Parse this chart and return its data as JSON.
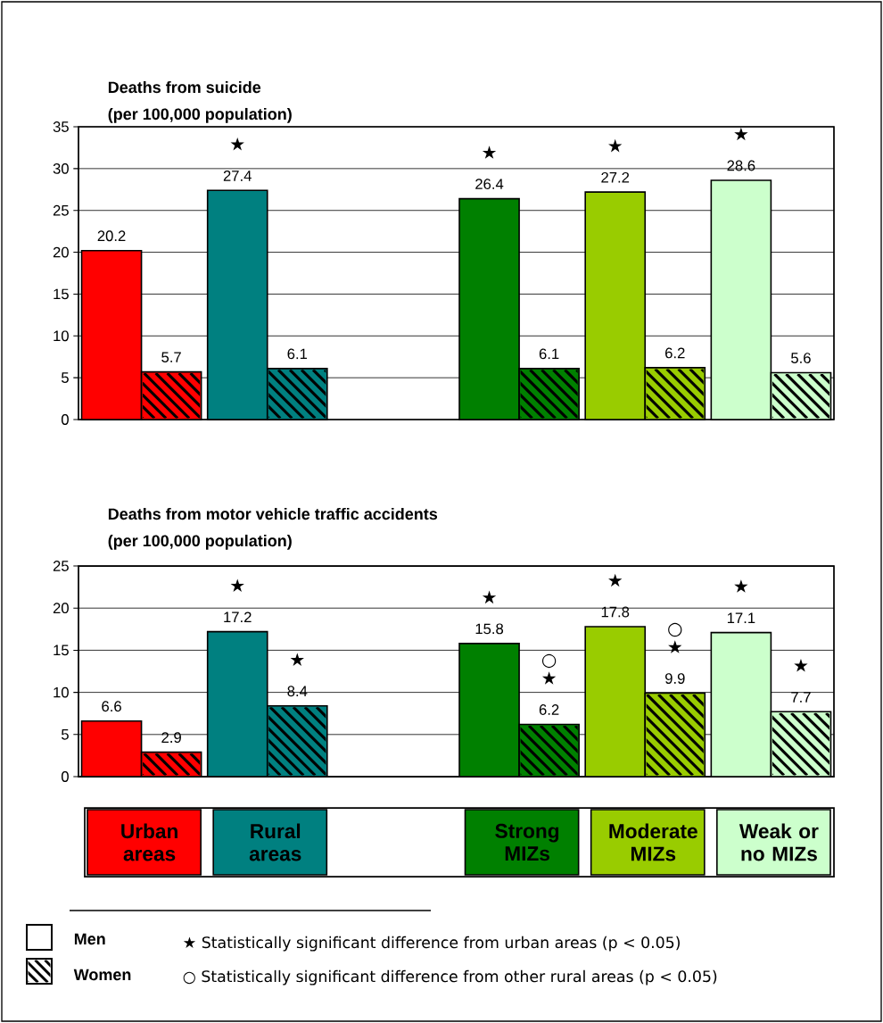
{
  "chart_data": [
    {
      "type": "bar",
      "title": "Deaths from suicide",
      "subtitle": "(per 100,000 population)",
      "categories": [
        null,
        null,
        null,
        null,
        null,
        null
      ],
      "series": [
        {
          "colors": [
            "#ff0000",
            "#008080",
            "#ffffff",
            "#008000",
            "#99cc00",
            "#ccffcc"
          ],
          "values": [
            20.2,
            27.4,
            null,
            26.4,
            27.2,
            28.6
          ]
        },
        {
          "colors": [
            "#ff0000",
            "#008080",
            "#ffffff",
            "#008000",
            "#99cc00",
            "#ccffcc"
          ],
          "values": [
            5.7,
            6.1,
            null,
            6.1,
            6.2,
            5.6
          ]
        }
      ],
      "ylim": [
        0,
        35
      ],
      "yticks": [
        0,
        5,
        10,
        15,
        20,
        25,
        30,
        35
      ],
      "grid": "y",
      "data_labels": true,
      "tick_labels": "y",
      "annotations": [
        "★",
        "★",
        "★",
        "★"
      ]
    },
    {
      "type": "bar",
      "title": "Deaths from motor vehicle traffic accidents",
      "subtitle": "(per 100,000 population)",
      "categories": [
        "Urban areas",
        "Rural areas",
        null,
        "Strong MIZs",
        "Moderate MIZs",
        "Weak or no MIZs"
      ],
      "series": [
        {
          "name": "Men",
          "colors": [
            "#ff0000",
            "#008080",
            "#ffffff",
            "#008000",
            "#99cc00",
            "#ccffcc"
          ],
          "values": [
            6.6,
            17.2,
            null,
            15.8,
            17.8,
            17.1
          ]
        },
        {
          "name": "Women",
          "colors": [
            "#ff0000",
            "#008080",
            "#ffffff",
            "#008000",
            "#99cc00",
            "#ccffcc"
          ],
          "values": [
            2.9,
            8.4,
            null,
            6.2,
            9.9,
            7.7
          ]
        }
      ],
      "ylim": [
        0,
        25
      ],
      "yticks": [
        0,
        5,
        10,
        15,
        20,
        25
      ],
      "grid": "y",
      "data_labels": true,
      "legend": "bottom",
      "annotations": [
        "★",
        "★",
        "★",
        "★",
        "○",
        "★",
        "★",
        "○",
        "★",
        "★",
        "★  Statistically significant difference from urban areas (p < 0.05)",
        "○  Statistically significant difference from other rural areas (p < 0.05)"
      ]
    }
  ]
}
